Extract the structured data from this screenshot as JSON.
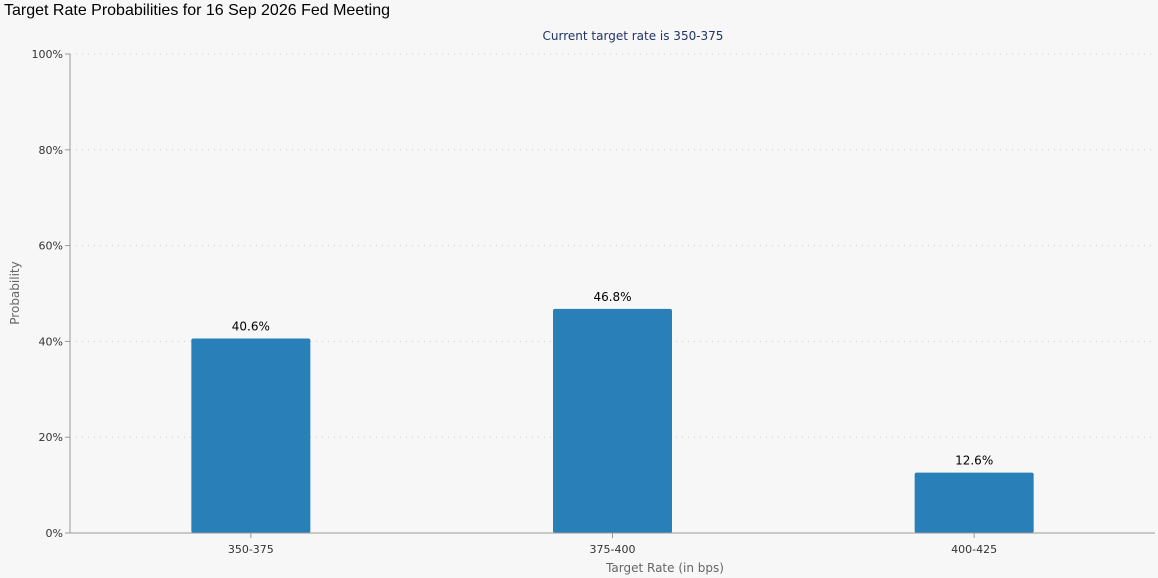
{
  "page_title": "Target Rate Probabilities for 16 Sep 2026 Fed Meeting",
  "colors": {
    "bar": "#2980b9",
    "grid": "#cccccc",
    "subtitle": "#223366",
    "axis_text": "#333333"
  },
  "chart_data": {
    "type": "bar",
    "title": "",
    "subtitle": "Current target rate is 350-375",
    "xlabel": "Target Rate (in bps)",
    "ylabel": "Probability",
    "categories": [
      "350-375",
      "375-400",
      "400-425"
    ],
    "values": [
      40.6,
      46.8,
      12.6
    ],
    "value_labels": [
      "40.6%",
      "46.8%",
      "12.6%"
    ],
    "ylim": [
      0,
      100
    ],
    "yticks": [
      0,
      20,
      40,
      60,
      80,
      100
    ],
    "ytick_labels": [
      "0%",
      "20%",
      "40%",
      "60%",
      "80%",
      "100%"
    ],
    "grid": true,
    "legend": "none"
  }
}
